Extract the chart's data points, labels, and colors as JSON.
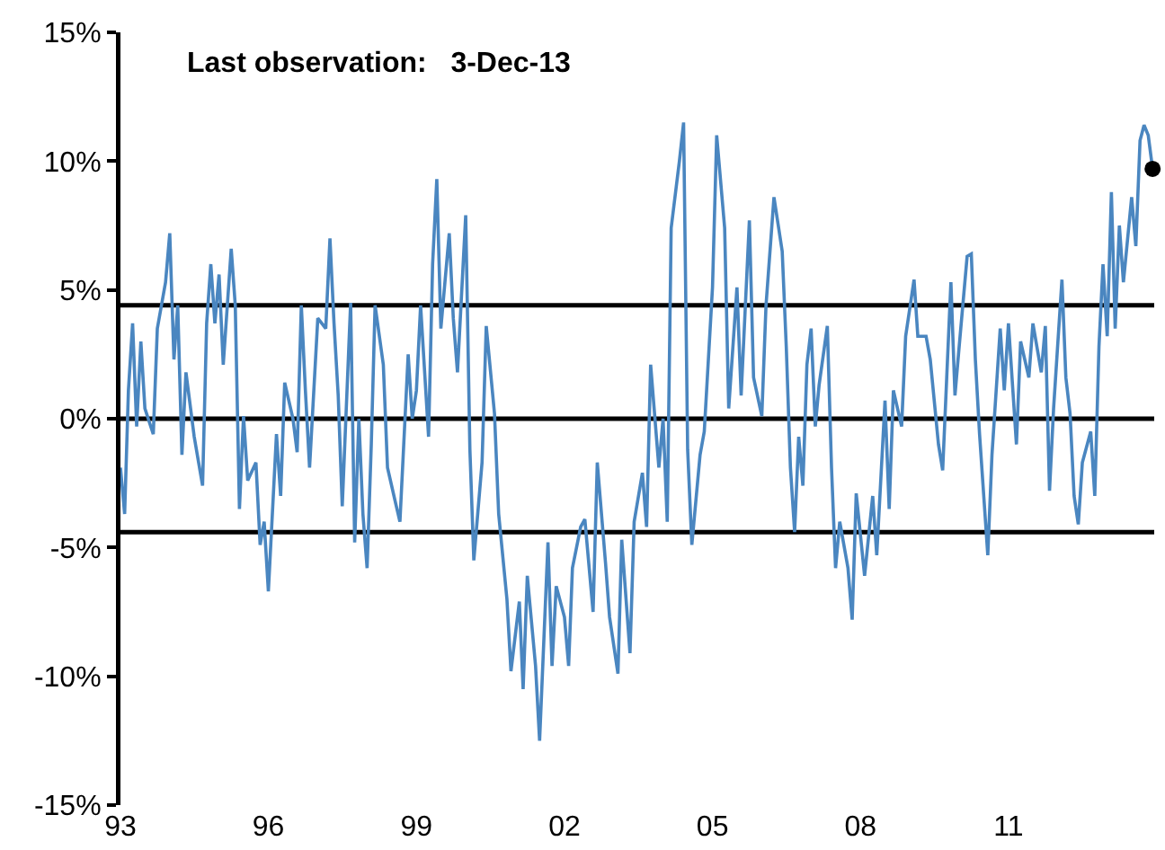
{
  "chart_data": {
    "type": "line",
    "annotations": [
      "Last observation:   3-Dec-13"
    ],
    "xlim": [
      "1993-01-01",
      "2013-12-15"
    ],
    "xticks": [
      {
        "value": "1993-01-01",
        "label": "93"
      },
      {
        "value": "1996-01-01",
        "label": "96"
      },
      {
        "value": "1999-01-01",
        "label": "99"
      },
      {
        "value": "2002-01-01",
        "label": "02"
      },
      {
        "value": "2005-01-01",
        "label": "05"
      },
      {
        "value": "2008-01-01",
        "label": "08"
      },
      {
        "value": "2011-01-01",
        "label": "11"
      }
    ],
    "ylim": [
      -15,
      15
    ],
    "yticks": [
      {
        "value": -15,
        "label": "-15%"
      },
      {
        "value": -10,
        "label": "-10%"
      },
      {
        "value": -5,
        "label": "-5%"
      },
      {
        "value": 0,
        "label": "0%"
      },
      {
        "value": 5,
        "label": "5%"
      },
      {
        "value": 10,
        "label": "10%"
      },
      {
        "value": 15,
        "label": "15%"
      }
    ],
    "grid": false,
    "marker": "none",
    "line_style": "solid",
    "ref_lines": [
      {
        "axis": "y",
        "value": 4.4,
        "color": "#000000"
      },
      {
        "axis": "y",
        "value": 0,
        "color": "#000000"
      },
      {
        "axis": "y",
        "value": -4.4,
        "color": "#000000"
      }
    ],
    "series": [
      {
        "color": "#4a86c0",
        "x": [
          "1993-01",
          "1993-02",
          "1993-03",
          "1993-04",
          "1993-05",
          "1993-06",
          "1993-07",
          "1993-09",
          "1993-10",
          "1993-12",
          "1994-01",
          "1994-02",
          "1994-03",
          "1994-04",
          "1994-05",
          "1994-07",
          "1994-09",
          "1994-10",
          "1994-11",
          "1994-12",
          "1995-01",
          "1995-02",
          "1995-04",
          "1995-05",
          "1995-06",
          "1995-07",
          "1995-08",
          "1995-10",
          "1995-11",
          "1995-12",
          "1996-01",
          "1996-03",
          "1996-04",
          "1996-05",
          "1996-07",
          "1996-08",
          "1996-09",
          "1996-10",
          "1996-11",
          "1997-01",
          "1997-03",
          "1997-04",
          "1997-05",
          "1997-06",
          "1997-07",
          "1997-09",
          "1997-10",
          "1997-11",
          "1997-12",
          "1998-01",
          "1998-02",
          "1998-03",
          "1998-05",
          "1998-06",
          "1998-08",
          "1998-09",
          "1998-11",
          "1998-12",
          "1999-01",
          "1999-02",
          "1999-04",
          "1999-05",
          "1999-06",
          "1999-07",
          "1999-09",
          "1999-10",
          "1999-11",
          "2000-01",
          "2000-02",
          "2000-03",
          "2000-05",
          "2000-06",
          "2000-08",
          "2000-09",
          "2000-11",
          "2000-12",
          "2001-02",
          "2001-03",
          "2001-04",
          "2001-06",
          "2001-07",
          "2001-09",
          "2001-10",
          "2001-11",
          "2002-01",
          "2002-02",
          "2002-03",
          "2002-05",
          "2002-06",
          "2002-08",
          "2002-09",
          "2002-11",
          "2002-12",
          "2003-02",
          "2003-03",
          "2003-05",
          "2003-06",
          "2003-08",
          "2003-09",
          "2003-10",
          "2003-12",
          "2004-01",
          "2004-02",
          "2004-03",
          "2004-05",
          "2004-06",
          "2004-07",
          "2004-08",
          "2004-10",
          "2004-11",
          "2005-01",
          "2005-02",
          "2005-04",
          "2005-05",
          "2005-07",
          "2005-08",
          "2005-10",
          "2005-11",
          "2006-01",
          "2006-02",
          "2006-04",
          "2006-06",
          "2006-07",
          "2006-08",
          "2006-09",
          "2006-10",
          "2006-11",
          "2006-12",
          "2007-01",
          "2007-02",
          "2007-03",
          "2007-05",
          "2007-06",
          "2007-07",
          "2007-08",
          "2007-10",
          "2007-11",
          "2007-12",
          "2008-02",
          "2008-04",
          "2008-05",
          "2008-07",
          "2008-08",
          "2008-09",
          "2008-11",
          "2008-12",
          "2009-02",
          "2009-03",
          "2009-05",
          "2009-06",
          "2009-08",
          "2009-09",
          "2009-10",
          "2009-11",
          "2009-12",
          "2010-01",
          "2010-03",
          "2010-04",
          "2010-05",
          "2010-06",
          "2010-08",
          "2010-09",
          "2010-11",
          "2010-12",
          "2011-01",
          "2011-03",
          "2011-04",
          "2011-06",
          "2011-07",
          "2011-09",
          "2011-10",
          "2011-11",
          "2011-12",
          "2012-02",
          "2012-03",
          "2012-04",
          "2012-05",
          "2012-06",
          "2012-07",
          "2012-09",
          "2012-10",
          "2012-11",
          "2012-12",
          "2013-01",
          "2013-02",
          "2013-03",
          "2013-04",
          "2013-05",
          "2013-07",
          "2013-08",
          "2013-09",
          "2013-10",
          "2013-11",
          "2013-12-03"
        ],
        "values": [
          -1.9,
          -3.7,
          1.1,
          3.7,
          -0.3,
          3.0,
          0.4,
          -0.6,
          3.5,
          5.3,
          7.2,
          2.3,
          4.4,
          -1.4,
          1.8,
          -0.7,
          -2.6,
          3.7,
          6.0,
          3.7,
          5.6,
          2.1,
          6.6,
          4.4,
          -3.5,
          0.1,
          -2.4,
          -1.7,
          -4.9,
          -4.0,
          -6.7,
          -0.6,
          -3.0,
          1.4,
          0.0,
          -1.3,
          4.4,
          1.1,
          -1.9,
          3.9,
          3.5,
          7.0,
          3.7,
          0.9,
          -3.4,
          4.5,
          -4.8,
          0.0,
          -3.7,
          -5.8,
          -1.0,
          4.4,
          2.1,
          -1.9,
          -3.3,
          -4.0,
          2.5,
          0.0,
          1.1,
          4.4,
          -0.7,
          6.0,
          9.3,
          3.5,
          7.2,
          3.9,
          1.8,
          7.9,
          -1.2,
          -5.5,
          -1.7,
          3.6,
          0.2,
          -3.7,
          -7.0,
          -9.8,
          -7.1,
          -10.5,
          -6.1,
          -9.6,
          -12.5,
          -4.8,
          -9.6,
          -6.5,
          -7.7,
          -9.6,
          -5.8,
          -4.2,
          -3.9,
          -7.5,
          -1.7,
          -5.6,
          -7.7,
          -9.9,
          -4.7,
          -9.1,
          -4.0,
          -2.1,
          -4.2,
          2.1,
          -1.9,
          0.0,
          -4.0,
          7.4,
          10.0,
          11.5,
          -1.2,
          -4.9,
          -1.4,
          -0.5,
          5.1,
          11.0,
          7.4,
          0.4,
          5.1,
          0.9,
          7.7,
          1.6,
          0.1,
          4.4,
          8.6,
          6.5,
          2.8,
          -1.9,
          -4.4,
          -0.7,
          -2.6,
          2.1,
          3.5,
          -0.3,
          1.3,
          3.6,
          -1.9,
          -5.8,
          -4.0,
          -5.8,
          -7.8,
          -2.9,
          -6.1,
          -3.0,
          -5.3,
          0.7,
          -3.5,
          1.1,
          -0.3,
          3.2,
          5.4,
          3.2,
          3.2,
          2.3,
          -1.0,
          -2.0,
          1.6,
          5.3,
          0.9,
          2.8,
          6.3,
          6.4,
          2.3,
          -0.6,
          -5.3,
          -1.4,
          3.5,
          1.1,
          3.7,
          -1.0,
          3.0,
          1.6,
          3.7,
          1.8,
          3.6,
          -2.8,
          0.4,
          5.4,
          1.6,
          0.2,
          -3.0,
          -4.1,
          -1.7,
          -0.5,
          -3.0,
          2.8,
          6.0,
          3.2,
          8.8,
          3.5,
          7.5,
          5.3,
          8.6,
          6.7,
          10.8,
          11.4,
          11.0,
          9.7
        ]
      },
      {
        "type": "scatter",
        "marker": "circle",
        "color": "#000000",
        "x": [
          "2013-12-03"
        ],
        "values": [
          9.7
        ]
      }
    ]
  }
}
